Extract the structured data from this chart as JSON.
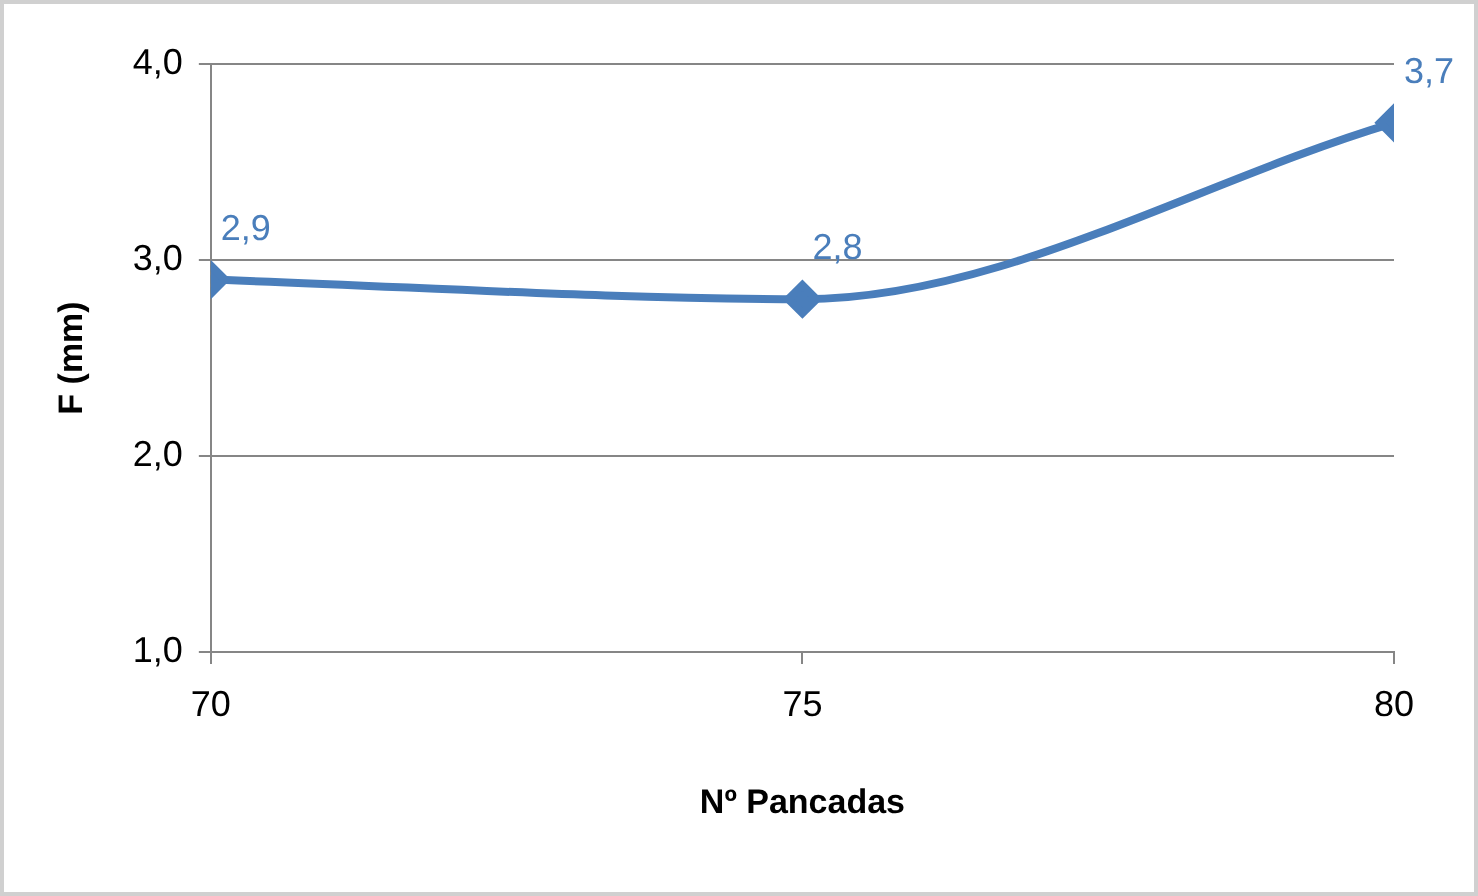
{
  "chart_data": {
    "type": "line",
    "xlabel": "Nº Pancadas",
    "ylabel": "F (mm)",
    "x": [
      70,
      75,
      80
    ],
    "series": [
      {
        "color": "#4a7ebb",
        "values": [
          2.9,
          2.8,
          3.7
        ],
        "value_labels": [
          "2,9",
          "2,8",
          "3,7"
        ]
      }
    ],
    "xlim": [
      70,
      80
    ],
    "xticks": [
      70,
      75,
      80
    ],
    "ylim": [
      1,
      4
    ],
    "yticks": [
      {
        "value": 1,
        "label": "1,0"
      },
      {
        "value": 2,
        "label": "2,0"
      },
      {
        "value": 3,
        "label": "3,0"
      },
      {
        "value": 4,
        "label": "4,0"
      }
    ],
    "grid": "y",
    "legend": false,
    "marker": "diamond",
    "line_style": "solid"
  }
}
